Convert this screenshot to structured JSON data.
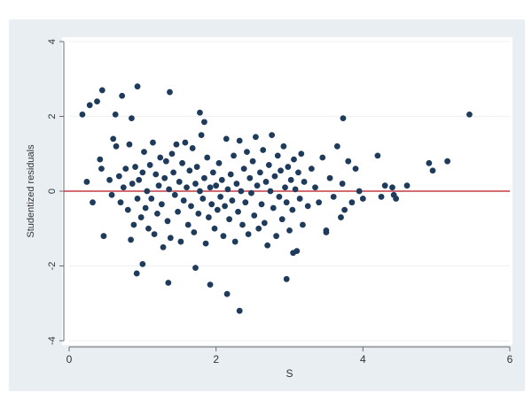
{
  "colors": {
    "page_bg": "#ffffff",
    "outer_bg": "#e9eef3",
    "plot_bg": "#ffffff",
    "point": "#1f3b5c",
    "ref_line": "#c23b45",
    "axis": "#6b6b6b",
    "grid": "#eef0f3",
    "text": "#333333"
  },
  "chart_data": {
    "type": "scatter",
    "title": "",
    "xlabel": "S",
    "ylabel": "Studentized residuals",
    "xlim": [
      0,
      6
    ],
    "ylim": [
      -4,
      4
    ],
    "x_ticks": [
      0,
      2,
      4,
      6
    ],
    "y_ticks": [
      -4,
      -2,
      0,
      2,
      4
    ],
    "x_tick_labels": [
      "0",
      "2",
      "4",
      "6"
    ],
    "y_tick_labels": [
      "-4",
      "-2",
      "0",
      "2",
      "4"
    ],
    "grid": true,
    "reference_line": {
      "y": 0
    },
    "series": [
      {
        "points": [
          [
            0.18,
            2.05
          ],
          [
            0.28,
            2.3
          ],
          [
            0.38,
            2.4
          ],
          [
            0.45,
            2.7
          ],
          [
            0.63,
            2.05
          ],
          [
            0.72,
            2.55
          ],
          [
            0.85,
            1.95
          ],
          [
            0.93,
            2.8
          ],
          [
            1.37,
            2.65
          ],
          [
            1.78,
            2.1
          ],
          [
            1.84,
            1.85
          ],
          [
            5.45,
            2.05
          ],
          [
            3.73,
            1.95
          ],
          [
            0.24,
            0.25
          ],
          [
            0.32,
            -0.3
          ],
          [
            0.42,
            0.85
          ],
          [
            0.44,
            0.6
          ],
          [
            0.47,
            -1.2
          ],
          [
            0.55,
            0.3
          ],
          [
            0.58,
            -0.1
          ],
          [
            0.6,
            1.4
          ],
          [
            0.64,
            1.2
          ],
          [
            0.68,
            0.4
          ],
          [
            0.7,
            -0.3
          ],
          [
            0.74,
            0.1
          ],
          [
            0.77,
            0.6
          ],
          [
            0.8,
            -0.5
          ],
          [
            0.82,
            1.25
          ],
          [
            0.84,
            -1.3
          ],
          [
            0.86,
            0.2
          ],
          [
            0.88,
            -0.9
          ],
          [
            0.9,
            0.65
          ],
          [
            0.93,
            -0.2
          ],
          [
            0.95,
            0.3
          ],
          [
            0.98,
            -0.7
          ],
          [
            1.0,
            0.5
          ],
          [
            1.02,
            1.05
          ],
          [
            1.04,
            -0.45
          ],
          [
            1.06,
            0.0
          ],
          [
            1.08,
            -1.0
          ],
          [
            1.1,
            0.7
          ],
          [
            1.12,
            -0.2
          ],
          [
            1.14,
            1.3
          ],
          [
            1.16,
            -1.15
          ],
          [
            1.18,
            0.45
          ],
          [
            1.2,
            -0.6
          ],
          [
            1.22,
            0.15
          ],
          [
            1.24,
            0.9
          ],
          [
            1.26,
            -0.35
          ],
          [
            1.28,
            -1.5
          ],
          [
            1.3,
            0.35
          ],
          [
            1.32,
            0.8
          ],
          [
            1.34,
            -0.8
          ],
          [
            1.36,
            0.05
          ],
          [
            1.38,
            -1.25
          ],
          [
            1.4,
            1.0
          ],
          [
            1.42,
            0.5
          ],
          [
            1.44,
            -0.1
          ],
          [
            1.46,
            1.25
          ],
          [
            1.48,
            -0.55
          ],
          [
            1.5,
            0.25
          ],
          [
            1.52,
            -1.35
          ],
          [
            1.54,
            0.75
          ],
          [
            1.56,
            -0.25
          ],
          [
            1.58,
            1.3
          ],
          [
            1.6,
            0.1
          ],
          [
            1.62,
            -0.9
          ],
          [
            1.64,
            0.55
          ],
          [
            1.66,
            -0.4
          ],
          [
            1.68,
            1.15
          ],
          [
            1.7,
            -1.1
          ],
          [
            1.72,
            0.2
          ],
          [
            1.74,
            0.65
          ],
          [
            1.76,
            -0.6
          ],
          [
            1.78,
            0.0
          ],
          [
            1.8,
            1.5
          ],
          [
            1.82,
            -0.2
          ],
          [
            1.84,
            0.35
          ],
          [
            1.86,
            -1.4
          ],
          [
            1.88,
            0.9
          ],
          [
            1.9,
            -0.7
          ],
          [
            1.92,
            0.1
          ],
          [
            1.94,
            -0.35
          ],
          [
            1.96,
            0.5
          ],
          [
            1.98,
            -1.0
          ],
          [
            2.0,
            0.15
          ],
          [
            2.02,
            -0.5
          ],
          [
            2.04,
            0.75
          ],
          [
            2.06,
            -0.15
          ],
          [
            2.08,
            0.3
          ],
          [
            2.1,
            -1.2
          ],
          [
            2.12,
            -0.4
          ],
          [
            2.14,
            1.4
          ],
          [
            2.16,
            0.05
          ],
          [
            2.18,
            -0.75
          ],
          [
            2.2,
            0.45
          ],
          [
            2.22,
            -0.25
          ],
          [
            2.24,
            0.95
          ],
          [
            2.26,
            -1.35
          ],
          [
            2.28,
            0.2
          ],
          [
            2.3,
            -0.55
          ],
          [
            2.32,
            1.35
          ],
          [
            2.34,
            0.0
          ],
          [
            2.36,
            -0.9
          ],
          [
            2.38,
            0.6
          ],
          [
            2.4,
            -0.3
          ],
          [
            2.42,
            1.05
          ],
          [
            2.44,
            -1.15
          ],
          [
            2.46,
            0.35
          ],
          [
            2.48,
            -0.05
          ],
          [
            2.5,
            0.8
          ],
          [
            2.52,
            -0.65
          ],
          [
            2.54,
            1.45
          ],
          [
            2.56,
            0.15
          ],
          [
            2.58,
            -1.0
          ],
          [
            2.6,
            0.5
          ],
          [
            2.62,
            -0.35
          ],
          [
            2.64,
            1.1
          ],
          [
            2.66,
            -0.85
          ],
          [
            2.68,
            0.25
          ],
          [
            2.7,
            -1.45
          ],
          [
            2.72,
            0.7
          ],
          [
            2.74,
            0.0
          ],
          [
            2.76,
            1.5
          ],
          [
            2.78,
            -0.45
          ],
          [
            2.8,
            0.4
          ],
          [
            2.82,
            -1.2
          ],
          [
            2.84,
            0.95
          ],
          [
            2.86,
            -0.15
          ],
          [
            2.88,
            0.55
          ],
          [
            2.9,
            -0.75
          ],
          [
            2.92,
            1.2
          ],
          [
            2.94,
            0.1
          ],
          [
            2.96,
            -0.3
          ],
          [
            2.98,
            0.65
          ],
          [
            3.0,
            -1.05
          ],
          [
            3.02,
            0.3
          ],
          [
            3.04,
            -0.5
          ],
          [
            3.06,
            0.85
          ],
          [
            3.08,
            0.05
          ],
          [
            3.1,
            -1.6
          ],
          [
            3.12,
            0.5
          ],
          [
            3.14,
            -0.2
          ],
          [
            3.16,
            1.0
          ],
          [
            3.18,
            -0.9
          ],
          [
            3.2,
            0.25
          ],
          [
            3.25,
            -0.4
          ],
          [
            3.3,
            0.6
          ],
          [
            3.35,
            0.1
          ],
          [
            3.4,
            -0.3
          ],
          [
            3.45,
            0.9
          ],
          [
            3.5,
            -1.05
          ],
          [
            3.55,
            0.35
          ],
          [
            3.6,
            -0.15
          ],
          [
            3.65,
            1.2
          ],
          [
            3.7,
            -0.7
          ],
          [
            3.72,
            0.2
          ],
          [
            3.75,
            -0.5
          ],
          [
            3.8,
            0.8
          ],
          [
            3.85,
            -0.3
          ],
          [
            3.9,
            0.6
          ],
          [
            3.95,
            0.0
          ],
          [
            4.0,
            -0.2
          ],
          [
            4.2,
            0.95
          ],
          [
            4.25,
            -0.15
          ],
          [
            4.3,
            0.15
          ],
          [
            4.4,
            0.1
          ],
          [
            4.42,
            -0.1
          ],
          [
            4.45,
            -0.2
          ],
          [
            4.6,
            0.15
          ],
          [
            4.9,
            0.75
          ],
          [
            4.95,
            0.55
          ],
          [
            5.15,
            0.8
          ],
          [
            0.92,
            -2.2
          ],
          [
            1.0,
            -1.95
          ],
          [
            1.35,
            -2.45
          ],
          [
            1.72,
            -2.05
          ],
          [
            1.92,
            -2.5
          ],
          [
            2.15,
            -2.75
          ],
          [
            2.32,
            -3.2
          ],
          [
            2.96,
            -2.35
          ],
          [
            3.05,
            -1.65
          ],
          [
            3.5,
            -1.1
          ]
        ]
      }
    ]
  }
}
